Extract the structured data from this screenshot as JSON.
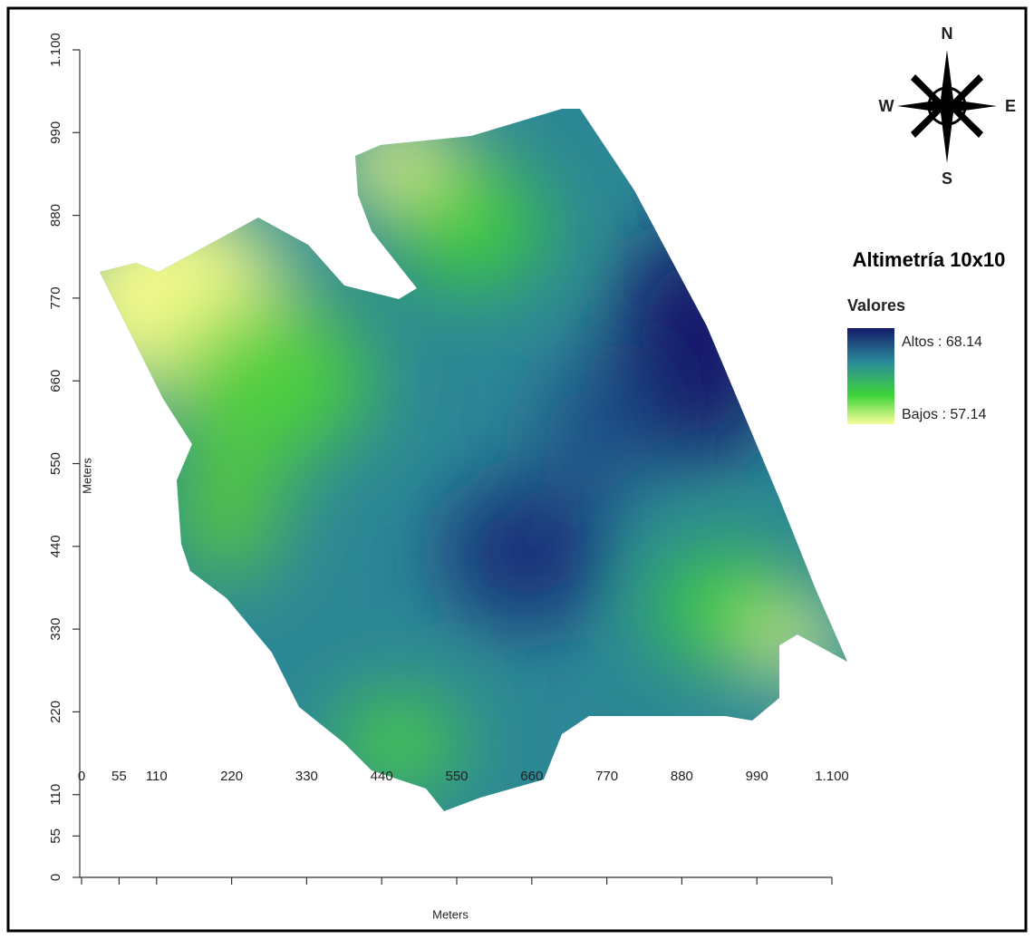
{
  "map": {
    "legend": {
      "title": "Altimetría 10x10",
      "subtitle": "Valores",
      "high": "Altos : 68.14",
      "low": "Bajos : 57.14"
    },
    "compass": {
      "north": "N",
      "south": "S",
      "east": "E",
      "west": "W"
    },
    "x_axis": {
      "label": "Meters",
      "lim": [
        0,
        1100
      ],
      "ticks": [
        0,
        55,
        110,
        220,
        330,
        440,
        550,
        660,
        770,
        880,
        990,
        {
          "value": 1100,
          "label": "1.100"
        }
      ]
    },
    "y_axis": {
      "label": "Meters",
      "lim": [
        0,
        1100
      ],
      "ticks": [
        0,
        55,
        110,
        220,
        330,
        440,
        550,
        660,
        770,
        880,
        990,
        {
          "value": 1100,
          "label": "1.100"
        }
      ]
    }
  }
}
